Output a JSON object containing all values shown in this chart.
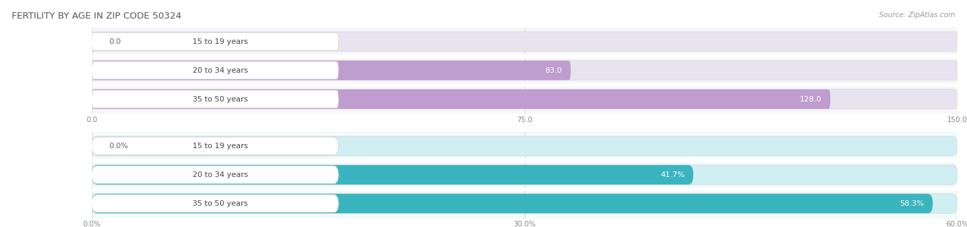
{
  "title": "FERTILITY BY AGE IN ZIP CODE 50324",
  "source": "Source: ZipAtlas.com",
  "top_chart": {
    "categories": [
      "15 to 19 years",
      "20 to 34 years",
      "35 to 50 years"
    ],
    "values": [
      0.0,
      83.0,
      128.0
    ],
    "value_labels": [
      "0.0",
      "83.0",
      "128.0"
    ],
    "xlim": [
      0,
      150
    ],
    "xticks": [
      0.0,
      75.0,
      150.0
    ],
    "xtick_labels": [
      "0.0",
      "75.0",
      "150.0"
    ],
    "bar_color": "#bf9dcf",
    "bg_bar_color": "#e8e4ef",
    "bg_color": "#f7f6fa",
    "row_sep_color": "#ffffff"
  },
  "bottom_chart": {
    "categories": [
      "15 to 19 years",
      "20 to 34 years",
      "35 to 50 years"
    ],
    "values": [
      0.0,
      41.7,
      58.3
    ],
    "value_labels": [
      "0.0%",
      "41.7%",
      "58.3%"
    ],
    "xlim": [
      0,
      60
    ],
    "xticks": [
      0.0,
      30.0,
      60.0
    ],
    "xtick_labels": [
      "0.0%",
      "30.0%",
      "60.0%"
    ],
    "bar_color": "#3ab5bf",
    "bg_bar_color": "#d0eff2",
    "bg_color": "#f2fafb",
    "row_sep_color": "#ffffff"
  },
  "title_color": "#555555",
  "title_fontsize": 9.5,
  "source_fontsize": 7.5,
  "label_fontsize": 8,
  "value_fontsize": 8,
  "tick_fontsize": 7.5,
  "fig_bg": "#ffffff",
  "bar_height": 0.68,
  "label_bubble_color": "#ffffff",
  "label_text_color": "#444444",
  "value_text_color_inside": "#ffffff",
  "value_text_color_outside": "#666666"
}
